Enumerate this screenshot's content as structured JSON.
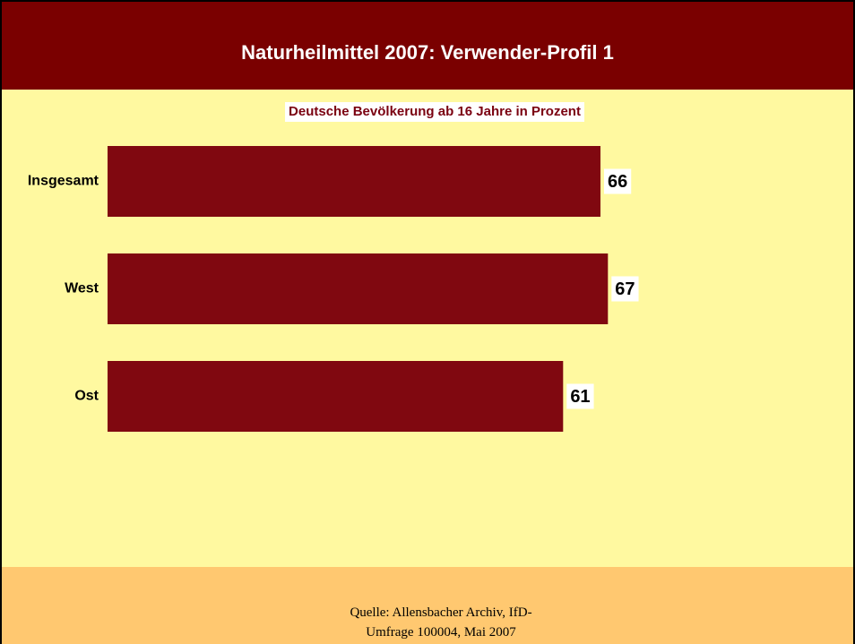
{
  "chart_data": {
    "type": "bar",
    "orientation": "horizontal",
    "title": "Naturheilmittel 2007: Verwender-Profil 1",
    "subtitle": "Deutsche Bevölkerung ab 16 Jahre in Prozent",
    "categories": [
      "Insgesamt",
      "West",
      "Ost"
    ],
    "values": [
      66,
      67,
      61
    ],
    "color": "#800810",
    "source": "Quelle: Allensbacher Archiv, IfD-Umfrage 100004, Mai 2007"
  }
}
